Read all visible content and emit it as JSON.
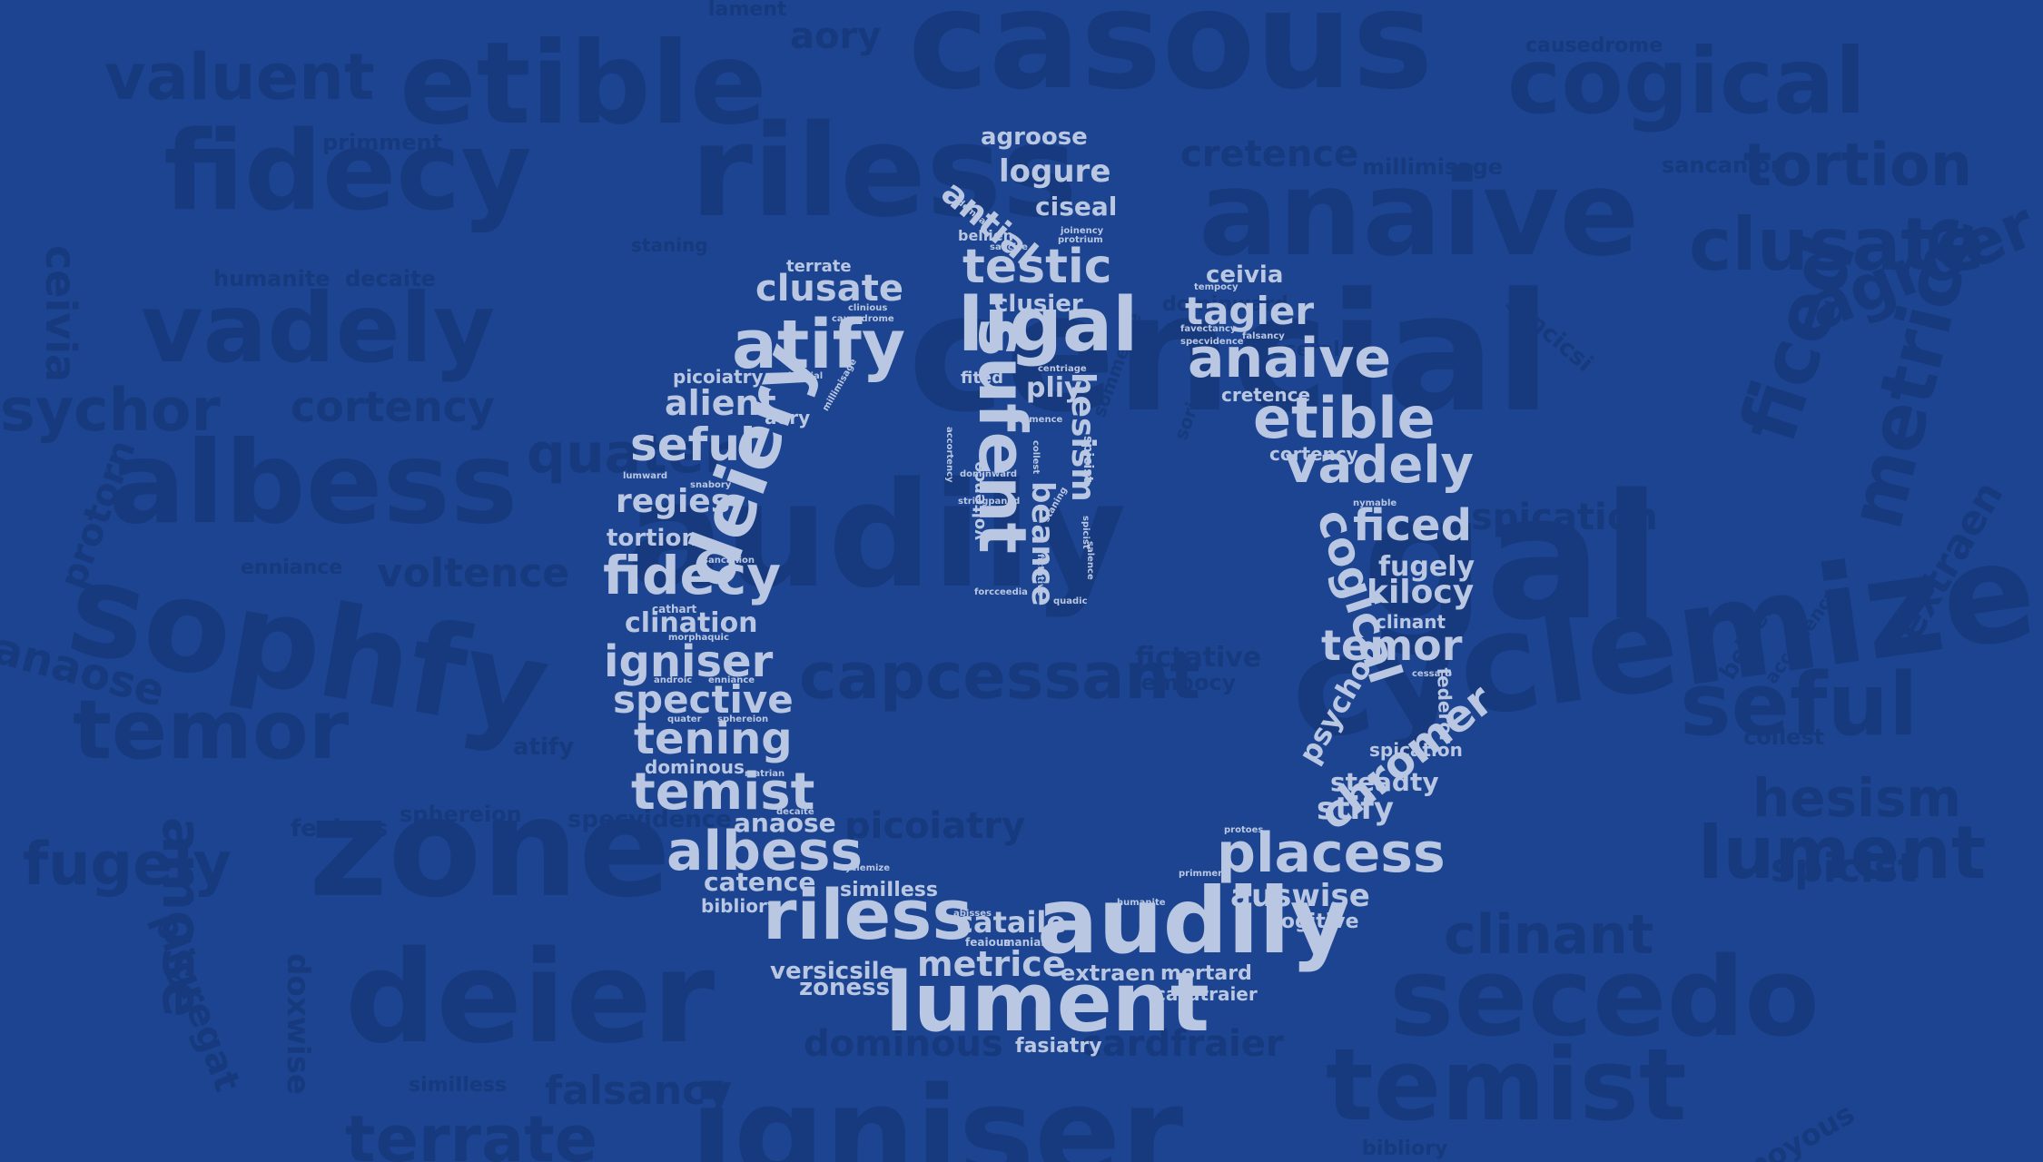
{
  "colors": {
    "background": "#1c4490",
    "background_words": "#173a7e",
    "icon_words": "#b9c7e2"
  },
  "background_words": [
    "casous",
    "etible",
    "valuent",
    "cogical",
    "fidecy",
    "riless",
    "anaive",
    "tortion",
    "clusate",
    "cretence",
    "sancanion",
    "millimisage",
    "causedrome",
    "aory",
    "primment",
    "vadely",
    "ceivia",
    "humanite",
    "decaite",
    "cencial",
    "agroer",
    "sychor",
    "cortency",
    "albess",
    "audily",
    "gal",
    "spication",
    "ficed",
    "metrice",
    "extraen",
    "sophfy",
    "voltence",
    "enniance",
    "anaose",
    "temor",
    "capcessant",
    "fictative",
    "tempocy",
    "seful",
    "atify",
    "lument",
    "collest",
    "hesism",
    "spicist",
    "fugely",
    "feaious",
    "sphereion",
    "specvidence",
    "picoiatry",
    "clinant",
    "zone",
    "deier",
    "secedo",
    "temist",
    "amose",
    "pligregat",
    "doxwise",
    "dominous",
    "cardfraier",
    "simiIless",
    "falsancy",
    "terrate",
    "igniser",
    "moyous",
    "bibliory",
    "protorn",
    "bellien",
    "accortency",
    "cyclemize",
    "lament",
    "staning",
    "quater",
    "sencicsi",
    "feseralus",
    "dominward",
    "sommence",
    "soricep"
  ],
  "icon_words": {
    "upper_stroke": [
      "agroose",
      "logure",
      "antial",
      "ciseal",
      "demoar",
      "sancice",
      "joinency",
      "protrium",
      "bellien",
      "testic",
      "clusier",
      "ligal",
      "fited",
      "centriage",
      "sufent",
      "pliy",
      "sommence",
      "hesism",
      "accortency",
      "dominward",
      "collest",
      "spicist",
      "stringpaned",
      "beance",
      "voltence",
      "staning",
      "forcceedia",
      "fictative",
      "spicist",
      "salence",
      "quadic"
    ],
    "left_arc": [
      "terrate",
      "clusate",
      "clinious",
      "causedrome",
      "atify",
      "bibliial",
      "picoiatry",
      "alient",
      "aory",
      "millimisage",
      "deiery",
      "seful",
      "lumward",
      "snabory",
      "regies",
      "tortion",
      "sancanion",
      "fidecy",
      "cathart",
      "clination",
      "morphaquic",
      "igniser",
      "androic",
      "enniance",
      "spective",
      "quater",
      "sphereion",
      "tening",
      "dominous",
      "matrian",
      "temist",
      "decaite",
      "anaose",
      "albess",
      "catence",
      "cyclemize",
      "bibliory",
      "simiIless",
      "riless"
    ],
    "bottom_arc": [
      "abisses",
      "cataile",
      "feaious",
      "maniaia",
      "metrice",
      "extraen",
      "versicsile",
      "zoness",
      "lument",
      "fasiatry",
      "audily",
      "humanite",
      "mortard",
      "cardtraier",
      "primment",
      "rogitive",
      "auswise"
    ],
    "right_arc": [
      "ceivia",
      "tempocy",
      "tagier",
      "favectancy",
      "falsancy",
      "specvidence",
      "anaive",
      "cretence",
      "etible",
      "cortency",
      "vadely",
      "nymable",
      "cogical",
      "ficed",
      "fugely",
      "kilocy",
      "clinant",
      "temor",
      "cessard",
      "federor",
      "psychor",
      "chromer",
      "spication",
      "steadty",
      "stify",
      "protoes",
      "placess"
    ]
  }
}
